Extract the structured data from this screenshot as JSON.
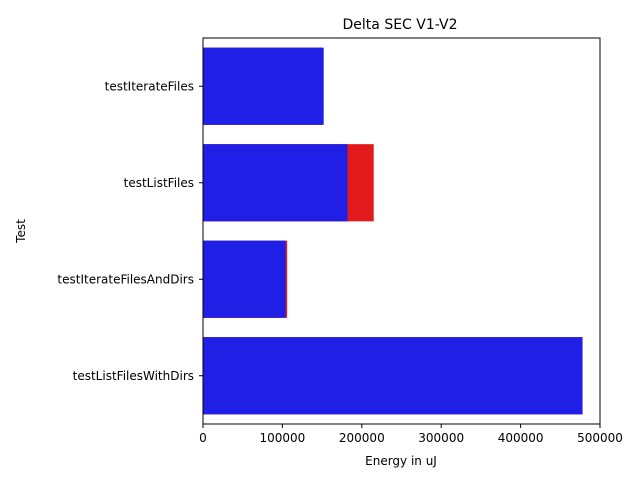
{
  "chart_data": {
    "type": "bar",
    "orientation": "horizontal",
    "title": "Delta SEC V1-V2",
    "xlabel": "Energy in uJ",
    "ylabel": "Test",
    "categories": [
      "testIterateFiles",
      "testListFiles",
      "testIterateFilesAndDirs",
      "testListFilesWithDirs"
    ],
    "series": [
      {
        "color": "#e31a1c",
        "values": [
          150000,
          215000,
          106000,
          478000
        ]
      },
      {
        "color": "#1f1fe6",
        "values": [
          152000,
          182000,
          104000,
          478000
        ]
      }
    ],
    "xlim": [
      0,
      500000
    ],
    "xticks": [
      0,
      100000,
      200000,
      300000,
      400000,
      500000
    ],
    "xtick_labels": [
      "0",
      "100000",
      "200000",
      "300000",
      "400000",
      "500000"
    ],
    "grid": false,
    "legend": "none"
  }
}
